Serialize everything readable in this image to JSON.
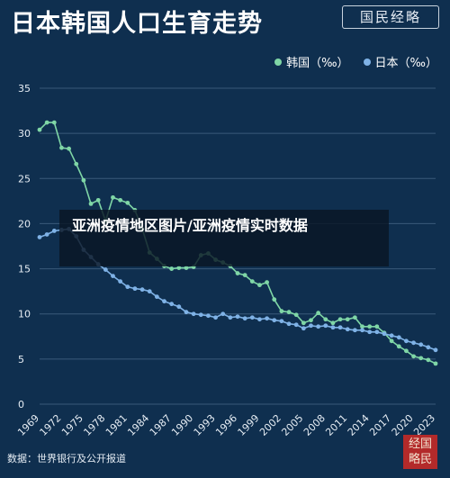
{
  "title": "日本韩国人口生育走势",
  "brand": "国民经略",
  "source": "数据：世界银行及公开报道",
  "stamp": "经国略民",
  "overlay_text": "亚洲疫情地区图片/亚洲疫情实时数据",
  "legend": [
    {
      "label": "韩国（‰）",
      "color": "#7fd6a6"
    },
    {
      "label": "日本（‰）",
      "color": "#7fb2e6"
    }
  ],
  "chart_data": {
    "type": "line",
    "title": "日本韩国人口生育走势",
    "ylim": [
      0,
      35
    ],
    "yticks": [
      0,
      5,
      10,
      15,
      20,
      25,
      30,
      35
    ],
    "xlim": [
      1969,
      2023
    ],
    "xticks": [
      1969,
      1972,
      1975,
      1978,
      1981,
      1984,
      1987,
      1990,
      1993,
      1996,
      1999,
      2002,
      2005,
      2008,
      2011,
      2014,
      2017,
      2020,
      2023
    ],
    "grid": true,
    "legend_position": "top-right",
    "x": [
      1969,
      1970,
      1971,
      1972,
      1973,
      1974,
      1975,
      1976,
      1977,
      1978,
      1979,
      1980,
      1981,
      1982,
      1983,
      1984,
      1985,
      1986,
      1987,
      1988,
      1989,
      1990,
      1991,
      1992,
      1993,
      1994,
      1995,
      1996,
      1997,
      1998,
      1999,
      2000,
      2001,
      2002,
      2003,
      2004,
      2005,
      2006,
      2007,
      2008,
      2009,
      2010,
      2011,
      2012,
      2013,
      2014,
      2015,
      2016,
      2017,
      2018,
      2019,
      2020,
      2021,
      2022,
      2023
    ],
    "series": [
      {
        "name": "韩国（‰）",
        "color": "#7fd6a6",
        "values": [
          30.4,
          31.2,
          31.2,
          28.4,
          28.3,
          26.6,
          24.8,
          22.2,
          22.6,
          20.3,
          22.9,
          22.6,
          22.3,
          21.5,
          19.4,
          16.8,
          16.1,
          15.3,
          15.0,
          15.1,
          15.1,
          15.2,
          16.5,
          16.7,
          16.0,
          15.7,
          15.3,
          14.5,
          14.3,
          13.6,
          13.2,
          13.5,
          11.6,
          10.3,
          10.2,
          9.9,
          9.0,
          9.3,
          10.1,
          9.4,
          9.0,
          9.4,
          9.4,
          9.6,
          8.6,
          8.6,
          8.6,
          7.9,
          7.0,
          6.4,
          5.9,
          5.3,
          5.1,
          4.9,
          4.5
        ]
      },
      {
        "name": "日本（‰）",
        "color": "#7fb2e6",
        "values": [
          18.5,
          18.8,
          19.2,
          19.3,
          19.4,
          18.6,
          17.1,
          16.3,
          15.5,
          14.9,
          14.2,
          13.6,
          13.0,
          12.8,
          12.7,
          12.5,
          11.9,
          11.4,
          11.1,
          10.8,
          10.2,
          10.0,
          9.9,
          9.8,
          9.6,
          10.0,
          9.6,
          9.7,
          9.5,
          9.6,
          9.4,
          9.5,
          9.3,
          9.2,
          8.9,
          8.8,
          8.4,
          8.7,
          8.6,
          8.7,
          8.5,
          8.5,
          8.3,
          8.2,
          8.2,
          8.0,
          8.0,
          7.8,
          7.6,
          7.4,
          7.0,
          6.8,
          6.6,
          6.3,
          6.0
        ]
      }
    ]
  }
}
